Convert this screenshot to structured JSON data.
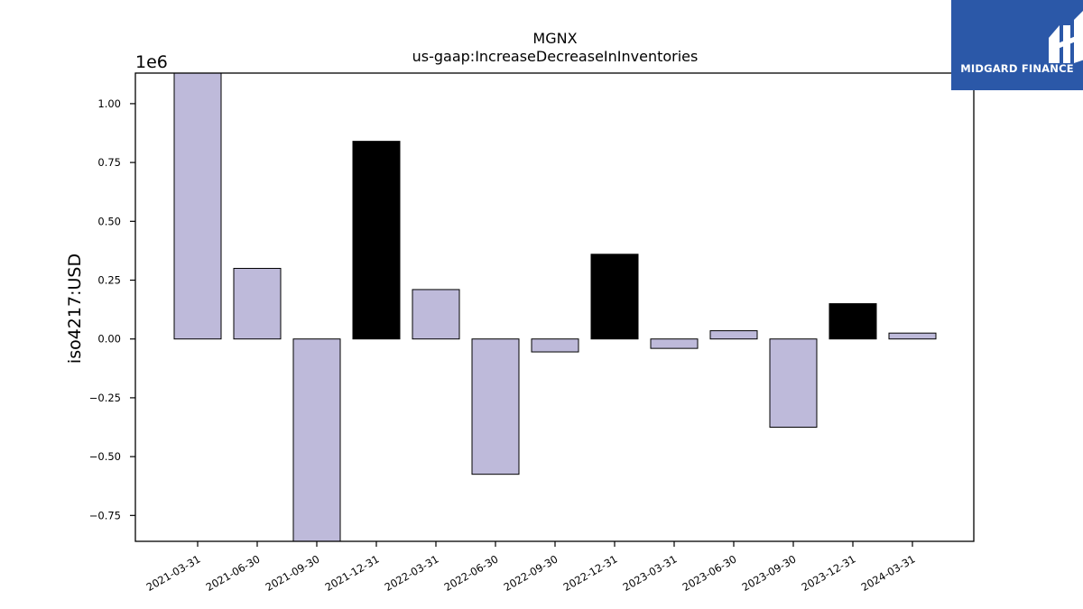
{
  "logo": {
    "text": "MIDGARD FINANCE",
    "color": "#2b58a8"
  },
  "chart_data": {
    "type": "bar",
    "title": "MGNX",
    "subtitle": "us-gaap:IncreaseDecreaseInInventories",
    "ylabel": "iso4217:USD",
    "xlabel": "",
    "offset_label": "1e6",
    "ylim": [
      -0.86,
      1.13
    ],
    "yticks": [
      -0.75,
      -0.5,
      -0.25,
      0.0,
      0.25,
      0.5,
      0.75,
      1.0
    ],
    "ytick_labels": [
      "−0.75",
      "−0.50",
      "−0.25",
      "0.00",
      "0.25",
      "0.50",
      "0.75",
      "1.00"
    ],
    "grid": false,
    "categories": [
      "2021-03-31",
      "2021-06-30",
      "2021-09-30",
      "2021-12-31",
      "2022-03-31",
      "2022-06-30",
      "2022-09-30",
      "2022-12-31",
      "2023-03-31",
      "2023-06-30",
      "2023-09-30",
      "2023-12-31",
      "2024-03-31"
    ],
    "values": [
      1.13,
      0.3,
      -0.86,
      0.84,
      0.21,
      -0.575,
      -0.055,
      0.36,
      -0.04,
      0.035,
      -0.375,
      0.15,
      0.025
    ],
    "bar_colors": [
      "#bebada",
      "#bebada",
      "#bebada",
      "#000000",
      "#bebada",
      "#bebada",
      "#bebada",
      "#000000",
      "#bebada",
      "#bebada",
      "#bebada",
      "#000000",
      "#bebada"
    ]
  }
}
